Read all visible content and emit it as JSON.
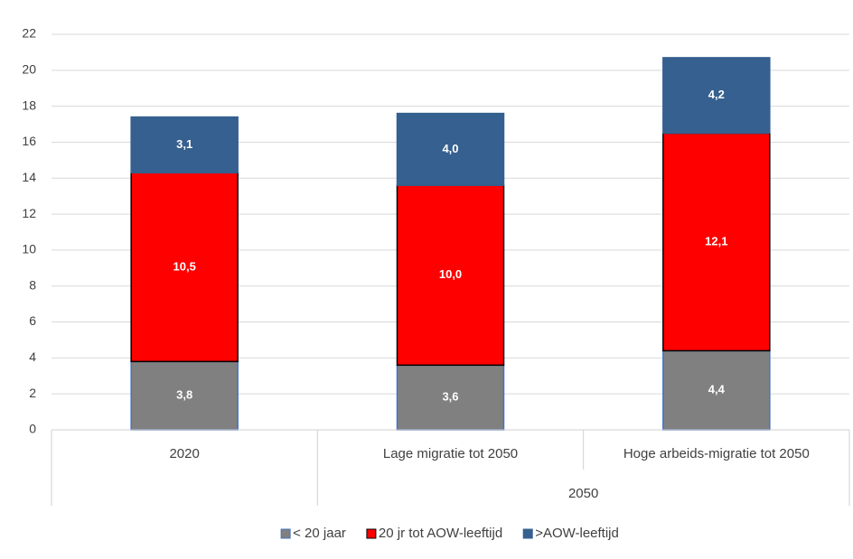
{
  "chart_data": {
    "type": "stacked_bar",
    "categories": [
      "2020",
      "Lage migratie tot 2050",
      "Hoge arbeids-migratie tot 2050"
    ],
    "category_groups": [
      null,
      "2050",
      "2050"
    ],
    "series": [
      {
        "name": "< 20 jaar",
        "color": "#808080",
        "stroke": "#4472c4",
        "values": [
          3.8,
          3.6,
          4.4
        ],
        "value_labels": [
          "3,8",
          "3,6",
          "4,4"
        ]
      },
      {
        "name": "20 jr tot AOW-leeftijd",
        "color": "#ff0000",
        "stroke": "#000000",
        "values": [
          10.5,
          10.0,
          12.1
        ],
        "value_labels": [
          "10,5",
          "10,0",
          "12,1"
        ]
      },
      {
        "name": ">AOW-leeftijd",
        "color": "#35608f",
        "stroke": "#35608f",
        "values": [
          3.1,
          4.0,
          4.2
        ],
        "value_labels": [
          "3,1",
          "4,0",
          "4,2"
        ]
      }
    ],
    "ylim": [
      0,
      22
    ],
    "yticks": [
      0,
      2,
      4,
      6,
      8,
      10,
      12,
      14,
      16,
      18,
      20,
      22
    ],
    "grid": true,
    "legend": "bottom"
  }
}
